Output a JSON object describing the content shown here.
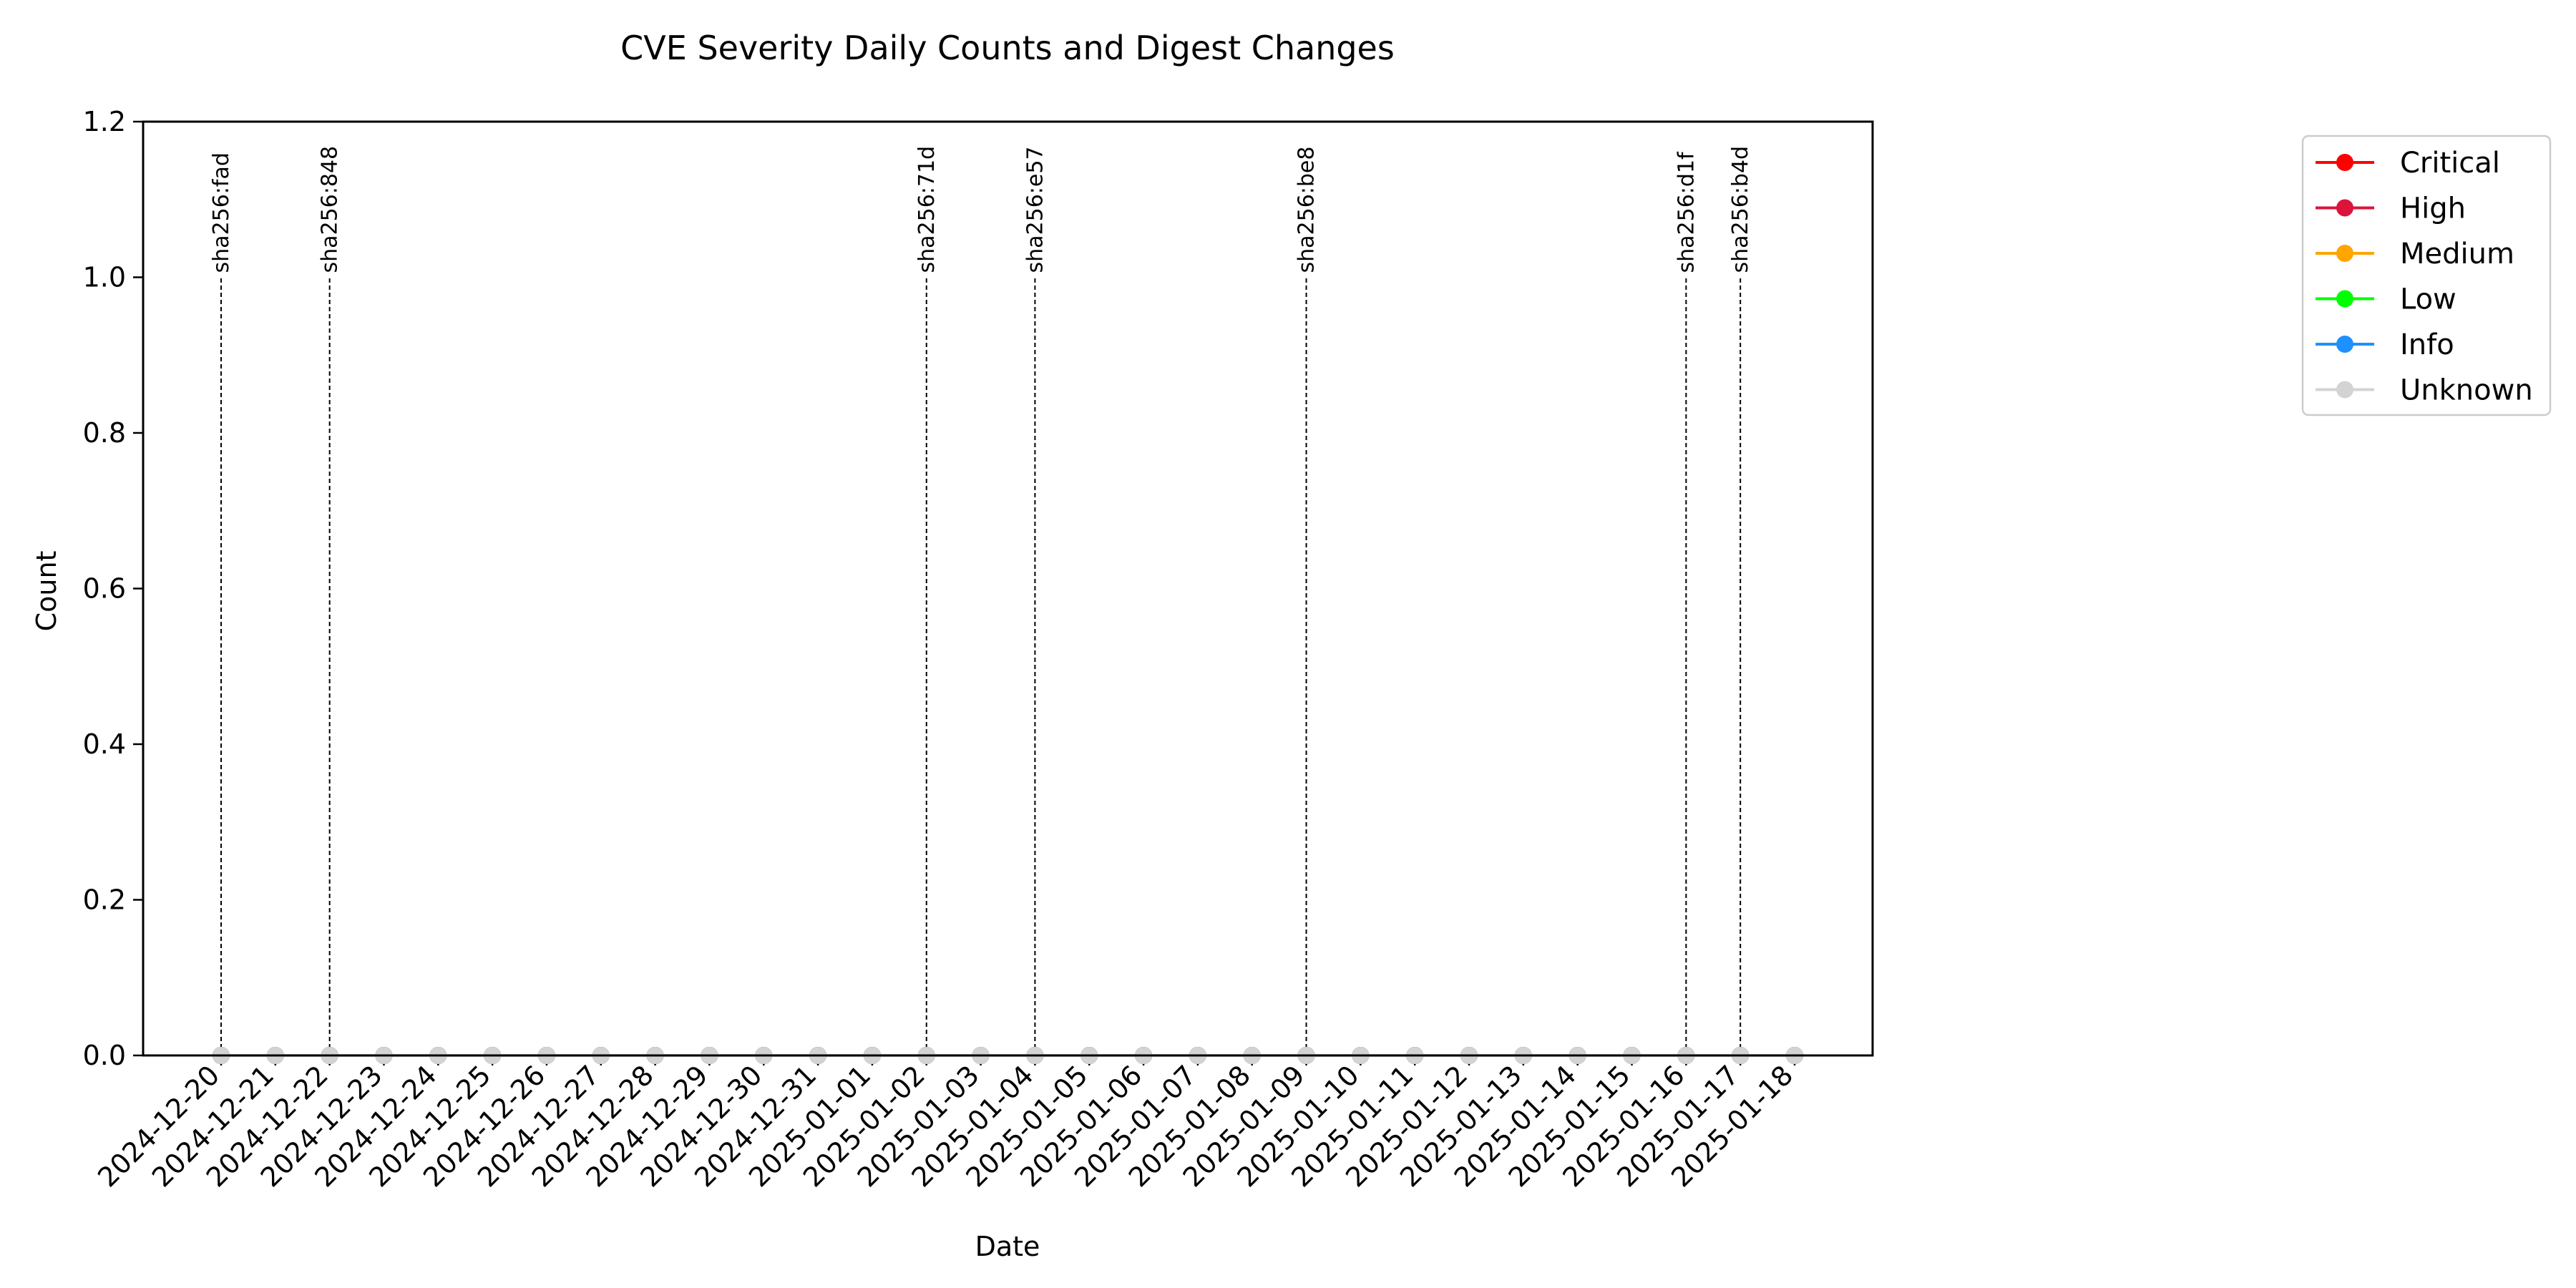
{
  "chart_data": {
    "type": "line",
    "title": "CVE Severity Daily Counts and Digest Changes",
    "xlabel": "Date",
    "ylabel": "Count",
    "ylim": [
      0,
      1.2
    ],
    "yticks": [
      "0.0",
      "0.2",
      "0.4",
      "0.6",
      "0.8",
      "1.0",
      "1.2"
    ],
    "categories": [
      "2024-12-20",
      "2024-12-21",
      "2024-12-22",
      "2024-12-23",
      "2024-12-24",
      "2024-12-25",
      "2024-12-26",
      "2024-12-27",
      "2024-12-28",
      "2024-12-29",
      "2024-12-30",
      "2024-12-31",
      "2025-01-01",
      "2025-01-02",
      "2025-01-03",
      "2025-01-04",
      "2025-01-05",
      "2025-01-06",
      "2025-01-07",
      "2025-01-08",
      "2025-01-09",
      "2025-01-10",
      "2025-01-11",
      "2025-01-12",
      "2025-01-13",
      "2025-01-14",
      "2025-01-15",
      "2025-01-16",
      "2025-01-17",
      "2025-01-18"
    ],
    "series": [
      {
        "name": "Critical",
        "color": "#ff0000",
        "values": [
          0,
          0,
          0,
          0,
          0,
          0,
          0,
          0,
          0,
          0,
          0,
          0,
          0,
          0,
          0,
          0,
          0,
          0,
          0,
          0,
          0,
          0,
          0,
          0,
          0,
          0,
          0,
          0,
          0,
          0
        ]
      },
      {
        "name": "High",
        "color": "#dc143c",
        "values": [
          0,
          0,
          0,
          0,
          0,
          0,
          0,
          0,
          0,
          0,
          0,
          0,
          0,
          0,
          0,
          0,
          0,
          0,
          0,
          0,
          0,
          0,
          0,
          0,
          0,
          0,
          0,
          0,
          0,
          0
        ]
      },
      {
        "name": "Medium",
        "color": "#ffa500",
        "values": [
          0,
          0,
          0,
          0,
          0,
          0,
          0,
          0,
          0,
          0,
          0,
          0,
          0,
          0,
          0,
          0,
          0,
          0,
          0,
          0,
          0,
          0,
          0,
          0,
          0,
          0,
          0,
          0,
          0,
          0
        ]
      },
      {
        "name": "Low",
        "color": "#00ff00",
        "values": [
          0,
          0,
          0,
          0,
          0,
          0,
          0,
          0,
          0,
          0,
          0,
          0,
          0,
          0,
          0,
          0,
          0,
          0,
          0,
          0,
          0,
          0,
          0,
          0,
          0,
          0,
          0,
          0,
          0,
          0
        ]
      },
      {
        "name": "Info",
        "color": "#1e90ff",
        "values": [
          0,
          0,
          0,
          0,
          0,
          0,
          0,
          0,
          0,
          0,
          0,
          0,
          0,
          0,
          0,
          0,
          0,
          0,
          0,
          0,
          0,
          0,
          0,
          0,
          0,
          0,
          0,
          0,
          0,
          0
        ]
      },
      {
        "name": "Unknown",
        "color": "#d3d3d3",
        "values": [
          0,
          0,
          0,
          0,
          0,
          0,
          0,
          0,
          0,
          0,
          0,
          0,
          0,
          0,
          0,
          0,
          0,
          0,
          0,
          0,
          0,
          0,
          0,
          0,
          0,
          0,
          0,
          0,
          0,
          0
        ]
      }
    ],
    "annotations": [
      {
        "date": "2024-12-20",
        "label": "sha256:fad"
      },
      {
        "date": "2024-12-22",
        "label": "sha256:848"
      },
      {
        "date": "2025-01-02",
        "label": "sha256:71d"
      },
      {
        "date": "2025-01-04",
        "label": "sha256:e57"
      },
      {
        "date": "2025-01-09",
        "label": "sha256:be8"
      },
      {
        "date": "2025-01-16",
        "label": "sha256:d1f"
      },
      {
        "date": "2025-01-17",
        "label": "sha256:b4d"
      }
    ],
    "legend_position": "outside-top-right",
    "grid": false
  }
}
